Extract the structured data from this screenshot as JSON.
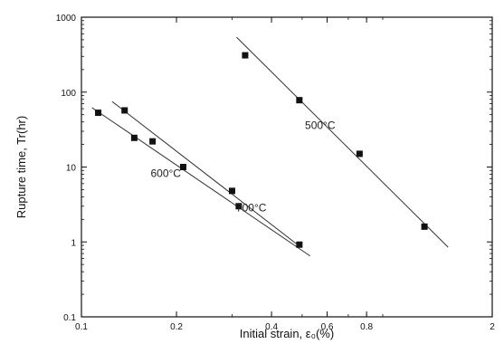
{
  "chart_data": {
    "type": "scatter",
    "title": "",
    "xlabel": "Initial strain, ε₀(%)",
    "ylabel": "Rupture time, Tr(hr)",
    "xscale": "log",
    "yscale": "log",
    "xlim": [
      0.1,
      2
    ],
    "ylim": [
      0.1,
      1000
    ],
    "grid": false,
    "x_tick_labels": [
      "0.1",
      "0.2",
      "0.4",
      "0.6",
      "0.8",
      "2"
    ],
    "y_tick_labels": [
      "0.1",
      "1",
      "10",
      "100",
      "1000"
    ],
    "series": [
      {
        "name": "500°C",
        "points": [
          [
            0.33,
            310
          ],
          [
            0.49,
            78
          ],
          [
            0.76,
            15
          ],
          [
            1.22,
            1.6
          ]
        ],
        "fit": [
          [
            0.31,
            540
          ],
          [
            1.45,
            0.85
          ]
        ]
      },
      {
        "name": "600°C",
        "points": [
          [
            0.113,
            53
          ],
          [
            0.147,
            24.5
          ],
          [
            0.21,
            10
          ],
          [
            0.315,
            3
          ]
        ],
        "fit": [
          [
            0.108,
            62
          ],
          [
            0.53,
            0.65
          ]
        ]
      },
      {
        "name": "700°C",
        "points": [
          [
            0.137,
            57
          ],
          [
            0.168,
            22
          ],
          [
            0.3,
            4.8
          ],
          [
            0.49,
            0.92
          ]
        ],
        "fit": [
          [
            0.125,
            75
          ],
          [
            0.49,
            0.88
          ]
        ]
      }
    ],
    "labels": [
      {
        "text": "500°C",
        "x": 0.57,
        "y": 32
      },
      {
        "text": "600°C",
        "x": 0.185,
        "y": 7.4
      },
      {
        "text": "700°C",
        "x": 0.345,
        "y": 2.55
      }
    ]
  }
}
